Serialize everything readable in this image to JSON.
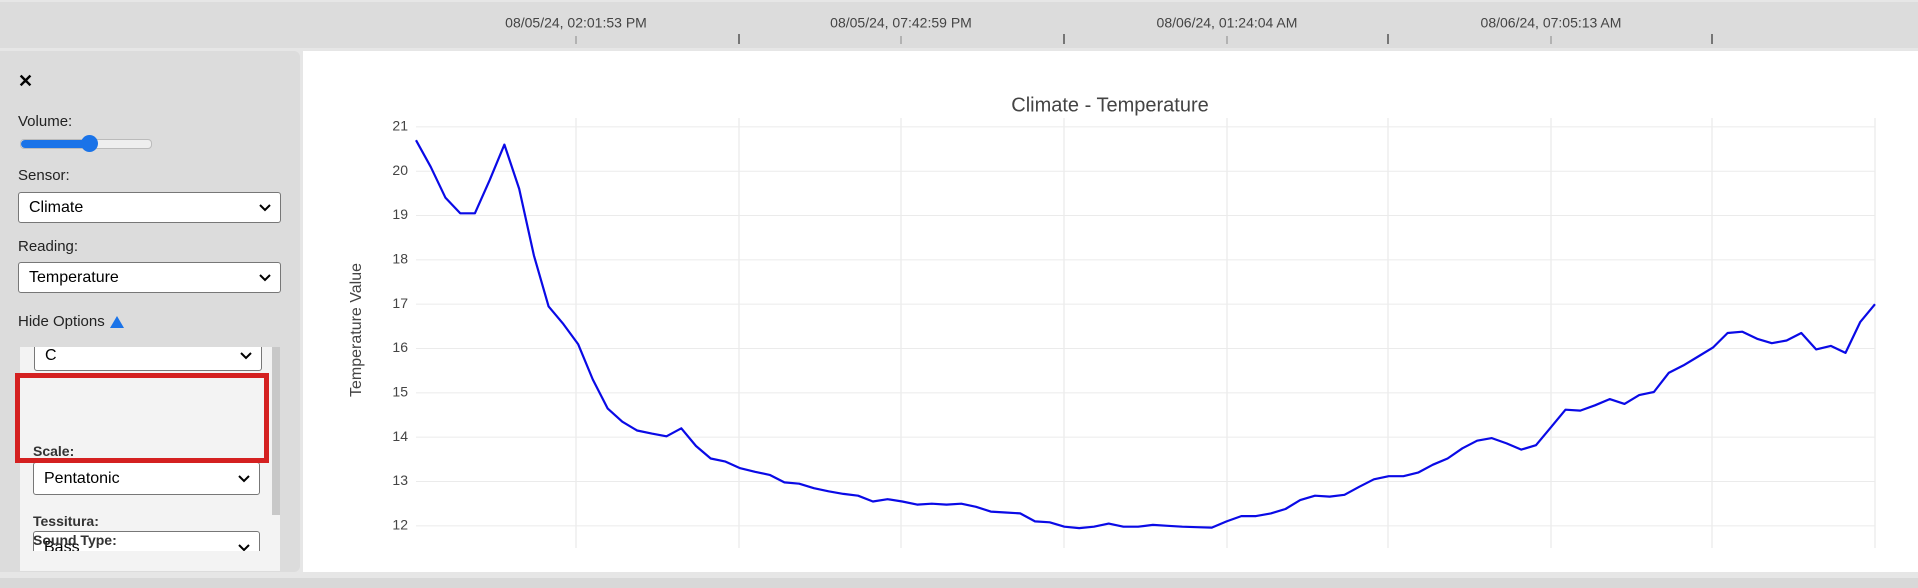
{
  "timeline": {
    "labels": [
      "08/05/24, 02:01:53 PM",
      "08/05/24, 07:42:59 PM",
      "08/06/24, 01:24:04 AM",
      "08/06/24, 07:05:13 AM"
    ]
  },
  "controls": {
    "close": "✕",
    "volume_label": "Volume:",
    "sensor_label": "Sensor:",
    "sensor_value": "Climate",
    "reading_label": "Reading:",
    "reading_value": "Temperature",
    "hide_options": "Hide Options",
    "key_value": "C",
    "scale_label": "Scale:",
    "scale_value": "Pentatonic",
    "tessitura_label": "Tessitura:",
    "tessitura_value": "Bass",
    "sound_type_label": "Sound Type:"
  },
  "chart_data": {
    "type": "line",
    "title": "Climate - Temperature",
    "y_label": "Temperature Value",
    "color": "#0a0ae6",
    "ylim": [
      11.5,
      21.2
    ],
    "yticks": [
      12,
      13,
      14,
      15,
      16,
      17,
      18,
      19,
      20,
      21
    ],
    "grid": true,
    "values": [
      20.7,
      20.1,
      19.4,
      19.05,
      19.05,
      19.8,
      20.6,
      19.6,
      18.1,
      16.95,
      16.55,
      16.1,
      15.3,
      14.65,
      14.35,
      14.15,
      14.08,
      14.02,
      14.2,
      13.8,
      13.52,
      13.45,
      13.3,
      13.22,
      13.15,
      12.98,
      12.95,
      12.85,
      12.78,
      12.72,
      12.68,
      12.55,
      12.6,
      12.55,
      12.48,
      12.5,
      12.48,
      12.5,
      12.43,
      12.32,
      12.3,
      12.28,
      12.1,
      12.08,
      11.98,
      11.95,
      11.98,
      12.05,
      11.98,
      11.98,
      12.02,
      12.0,
      11.98,
      11.97,
      11.96,
      12.1,
      12.22,
      12.22,
      12.28,
      12.38,
      12.58,
      12.68,
      12.66,
      12.7,
      12.88,
      13.05,
      13.12,
      13.12,
      13.2,
      13.38,
      13.52,
      13.75,
      13.92,
      13.98,
      13.86,
      13.72,
      13.82,
      14.22,
      14.62,
      14.6,
      14.72,
      14.86,
      14.75,
      14.95,
      15.02,
      15.45,
      15.62,
      15.82,
      16.02,
      16.35,
      16.38,
      16.22,
      16.12,
      16.18,
      16.35,
      15.98,
      16.06,
      15.9,
      16.6,
      17.0
    ]
  }
}
